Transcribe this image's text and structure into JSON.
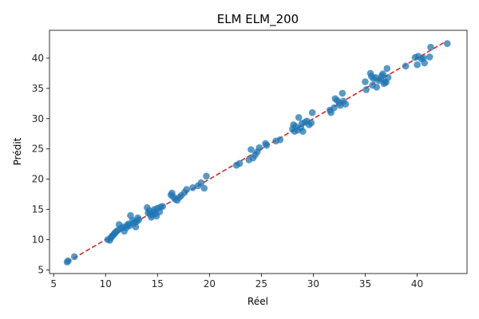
{
  "chart_data": {
    "type": "scatter",
    "title": "ELM ELM_200",
    "xlabel": "Réel",
    "ylabel": "Prédit",
    "xlim": [
      4.6,
      44.8
    ],
    "ylim": [
      4.4,
      44.6
    ],
    "xticks": [
      5,
      10,
      15,
      20,
      25,
      30,
      35,
      40
    ],
    "yticks": [
      5,
      10,
      15,
      20,
      25,
      30,
      35,
      40
    ],
    "grid": false,
    "colors": {
      "points": "#1f77b4",
      "reference_line": "#d62728"
    },
    "reference_line": {
      "from": [
        6.3,
        6.3
      ],
      "to": [
        42.8,
        42.8
      ],
      "style": "dashed"
    },
    "series": [
      {
        "points": [
          [
            6.3,
            6.3
          ],
          [
            6.4,
            6.5
          ],
          [
            7.0,
            7.2
          ],
          [
            10.2,
            10.0
          ],
          [
            10.4,
            9.9
          ],
          [
            10.5,
            10.3
          ],
          [
            10.6,
            10.5
          ],
          [
            10.7,
            10.7
          ],
          [
            10.8,
            10.9
          ],
          [
            10.9,
            11.1
          ],
          [
            11.0,
            11.3
          ],
          [
            11.2,
            11.6
          ],
          [
            11.3,
            12.5
          ],
          [
            11.5,
            11.9
          ],
          [
            11.7,
            12.1
          ],
          [
            11.8,
            11.4
          ],
          [
            12.0,
            12.0
          ],
          [
            12.1,
            12.4
          ],
          [
            12.2,
            12.6
          ],
          [
            12.3,
            12.3
          ],
          [
            12.4,
            14.0
          ],
          [
            12.6,
            13.2
          ],
          [
            12.7,
            12.7
          ],
          [
            12.8,
            12.9
          ],
          [
            12.9,
            12.1
          ],
          [
            13.0,
            13.0
          ],
          [
            13.1,
            13.6
          ],
          [
            13.2,
            13.3
          ],
          [
            14.0,
            15.3
          ],
          [
            14.1,
            14.4
          ],
          [
            14.2,
            14.8
          ],
          [
            14.3,
            14.2
          ],
          [
            14.4,
            13.7
          ],
          [
            14.5,
            14.1
          ],
          [
            14.6,
            14.6
          ],
          [
            14.7,
            15.0
          ],
          [
            14.8,
            14.3
          ],
          [
            14.9,
            13.9
          ],
          [
            15.0,
            15.2
          ],
          [
            15.2,
            14.6
          ],
          [
            15.3,
            15.4
          ],
          [
            15.5,
            15.5
          ],
          [
            16.3,
            17.4
          ],
          [
            16.4,
            17.7
          ],
          [
            16.5,
            17.1
          ],
          [
            16.7,
            16.7
          ],
          [
            16.9,
            16.5
          ],
          [
            17.1,
            17.0
          ],
          [
            17.3,
            17.3
          ],
          [
            17.6,
            17.8
          ],
          [
            17.8,
            18.3
          ],
          [
            18.4,
            18.6
          ],
          [
            18.9,
            18.9
          ],
          [
            19.2,
            19.4
          ],
          [
            19.5,
            18.5
          ],
          [
            19.7,
            20.5
          ],
          [
            22.6,
            22.3
          ],
          [
            22.9,
            22.6
          ],
          [
            23.8,
            23.2
          ],
          [
            24.0,
            24.9
          ],
          [
            24.2,
            23.5
          ],
          [
            24.4,
            24.0
          ],
          [
            24.6,
            24.5
          ],
          [
            24.8,
            25.2
          ],
          [
            25.4,
            25.9
          ],
          [
            25.5,
            25.6
          ],
          [
            26.4,
            26.3
          ],
          [
            26.8,
            26.5
          ],
          [
            28.0,
            28.3
          ],
          [
            28.1,
            29.0
          ],
          [
            28.2,
            27.9
          ],
          [
            28.3,
            28.7
          ],
          [
            28.5,
            28.1
          ],
          [
            28.6,
            30.2
          ],
          [
            28.8,
            28.5
          ],
          [
            28.9,
            29.2
          ],
          [
            29.0,
            27.9
          ],
          [
            29.2,
            29.4
          ],
          [
            29.4,
            29.6
          ],
          [
            29.6,
            29.0
          ],
          [
            29.8,
            29.3
          ],
          [
            29.9,
            31.0
          ],
          [
            31.6,
            31.4
          ],
          [
            31.7,
            31.0
          ],
          [
            32.0,
            31.8
          ],
          [
            32.1,
            33.3
          ],
          [
            32.3,
            33.0
          ],
          [
            32.5,
            32.6
          ],
          [
            32.6,
            32.2
          ],
          [
            32.8,
            34.2
          ],
          [
            32.9,
            32.9
          ],
          [
            33.1,
            32.4
          ],
          [
            35.0,
            36.1
          ],
          [
            35.1,
            34.8
          ],
          [
            35.5,
            37.5
          ],
          [
            35.6,
            37.0
          ],
          [
            35.7,
            35.5
          ],
          [
            35.8,
            36.6
          ],
          [
            36.0,
            36.8
          ],
          [
            36.1,
            35.2
          ],
          [
            36.3,
            36.3
          ],
          [
            36.5,
            36.6
          ],
          [
            36.6,
            37.1
          ],
          [
            36.7,
            37.4
          ],
          [
            36.8,
            35.8
          ],
          [
            36.9,
            36.1
          ],
          [
            37.0,
            36.0
          ],
          [
            37.1,
            38.3
          ],
          [
            37.2,
            36.8
          ],
          [
            38.9,
            38.7
          ],
          [
            39.8,
            40.1
          ],
          [
            40.0,
            38.9
          ],
          [
            40.1,
            40.3
          ],
          [
            40.4,
            39.9
          ],
          [
            40.6,
            40.0
          ],
          [
            40.7,
            39.2
          ],
          [
            41.2,
            40.2
          ],
          [
            41.3,
            41.8
          ],
          [
            42.9,
            42.4
          ]
        ]
      }
    ]
  }
}
